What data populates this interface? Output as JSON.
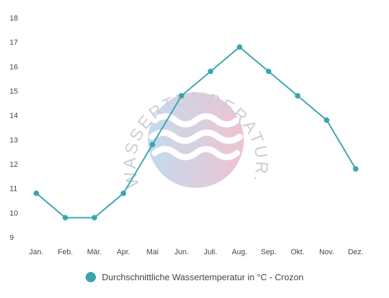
{
  "chart_data": {
    "type": "line",
    "categories": [
      "Jan.",
      "Feb.",
      "Mär.",
      "Apr.",
      "Mai",
      "Jun.",
      "Juli.",
      "Aug.",
      "Sep.",
      "Okt.",
      "Nov.",
      "Dez."
    ],
    "series": [
      {
        "name": "Durchschnittliche Wassertemperatur in °C - Crozon",
        "values": [
          10.8,
          9.8,
          9.8,
          10.8,
          12.8,
          14.8,
          15.8,
          16.8,
          15.8,
          14.8,
          13.8,
          11.8
        ],
        "color": "#3aa5ad"
      }
    ],
    "yticks": [
      9,
      10,
      11,
      12,
      13,
      14,
      15,
      16,
      17,
      18
    ],
    "ylim": [
      9,
      18
    ],
    "grid": false,
    "legend_position": "bottom-center"
  },
  "watermark": {
    "text": "WASSERTEMPERATUR.ORG",
    "colors": [
      "#b9d6ec",
      "#ecb9c9"
    ]
  }
}
